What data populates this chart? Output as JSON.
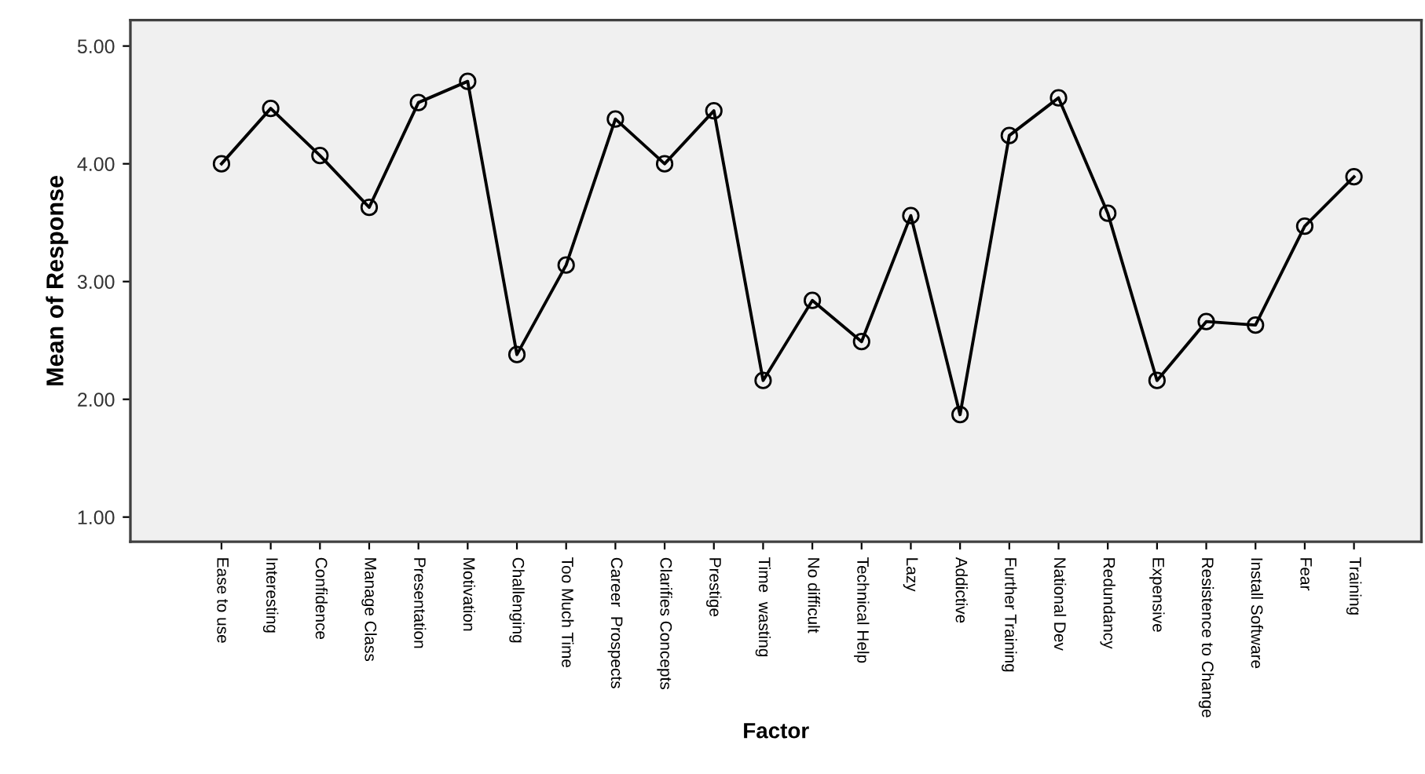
{
  "chart_data": {
    "type": "line",
    "xlabel": "Factor",
    "ylabel": "Mean of Response",
    "categories": [
      "Ease to use",
      "Interesting",
      "Confidence",
      "Manage Class",
      "Presentation",
      "Motivation",
      "Challenging",
      "Too Much Time",
      "Career  Prospects",
      "Clarifies Concepts",
      "Prestige",
      "Time  wasting",
      "No difficult",
      "Technical Help",
      "Lazy",
      "Addictive",
      "Further Training",
      "National Dev",
      "Redundancy",
      "Expensive",
      "Resistence to Change",
      "Install Software",
      "Fear",
      "Training"
    ],
    "series": [
      {
        "color": "#000000",
        "values": [
          4.0,
          4.47,
          4.07,
          3.63,
          4.52,
          4.7,
          2.38,
          3.14,
          4.38,
          4.0,
          4.45,
          2.16,
          2.84,
          2.49,
          3.56,
          1.87,
          4.24,
          4.56,
          3.58,
          2.16,
          2.66,
          2.63,
          3.47,
          3.89
        ]
      }
    ],
    "ylim": [
      0.79,
      5.22
    ],
    "yticks": [
      {
        "value": 1,
        "label": "1.00"
      },
      {
        "value": 2,
        "label": "2.00"
      },
      {
        "value": 3,
        "label": "3.00"
      },
      {
        "value": 4,
        "label": "4.00"
      },
      {
        "value": 5,
        "label": "5.00"
      }
    ],
    "marker": "circle",
    "line_style": "solid",
    "grid": false,
    "legend": false
  }
}
